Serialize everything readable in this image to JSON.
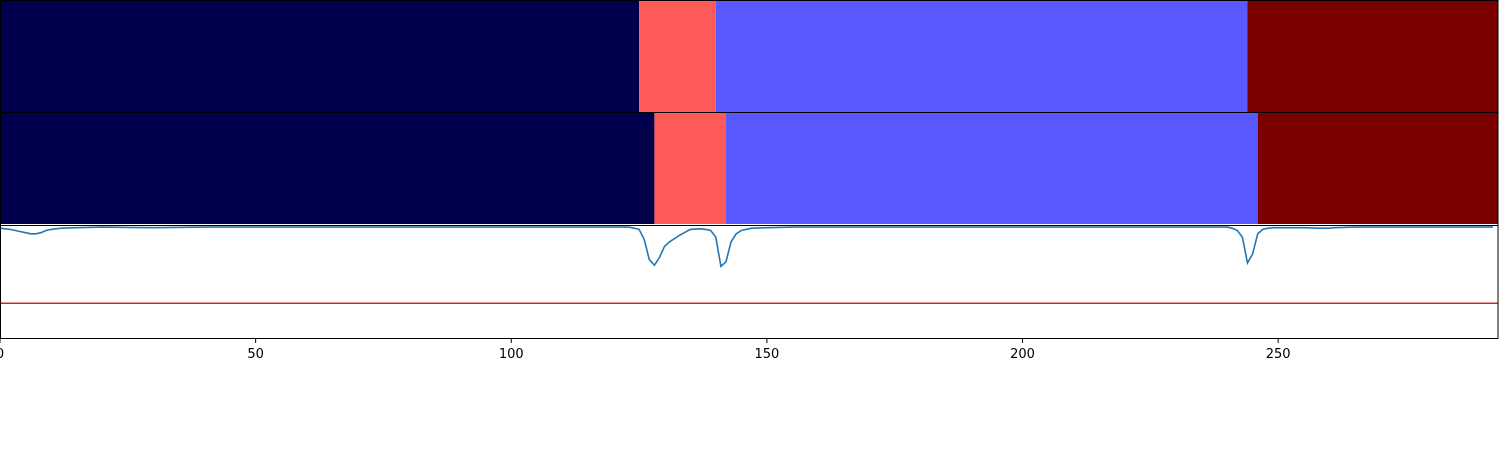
{
  "chart_data": {
    "type": "line",
    "title": "",
    "xlabel": "",
    "ylabel": "",
    "xlim": [
      0,
      293
    ],
    "xticks": [
      0,
      50,
      100,
      150,
      200,
      250
    ],
    "grid": false,
    "legend": "none",
    "segment_tracks": [
      {
        "segments": [
          {
            "start": 0,
            "end": 125,
            "color": "#00004c"
          },
          {
            "start": 125,
            "end": 140,
            "color": "#ff5a5a"
          },
          {
            "start": 140,
            "end": 244,
            "color": "#5959ff"
          },
          {
            "start": 244,
            "end": 293,
            "color": "#7a0000"
          }
        ]
      },
      {
        "segments": [
          {
            "start": 0,
            "end": 128,
            "color": "#00004c"
          },
          {
            "start": 128,
            "end": 142,
            "color": "#ff5a5a"
          },
          {
            "start": 142,
            "end": 246,
            "color": "#5959ff"
          },
          {
            "start": 246,
            "end": 293,
            "color": "#7a0000"
          }
        ]
      }
    ],
    "line_panel": {
      "ylim": [
        0,
        1
      ],
      "threshold": 0.31,
      "threshold_color": "#d62728",
      "series": [
        {
          "color": "#1f77b4",
          "x": [
            0,
            2,
            4,
            5,
            6,
            7,
            8,
            9,
            10,
            12,
            15,
            20,
            30,
            40,
            60,
            80,
            100,
            110,
            120,
            123,
            124,
            125,
            126,
            127,
            128,
            129,
            130,
            131,
            133,
            135,
            137,
            138,
            139,
            140,
            141,
            142,
            143,
            144,
            145,
            147,
            150,
            155,
            165,
            180,
            200,
            220,
            240,
            241,
            242,
            243,
            244,
            245,
            246,
            247,
            248,
            249,
            250,
            255,
            258,
            260,
            261,
            265,
            270,
            280,
            290,
            292
          ],
          "y": [
            0.98,
            0.97,
            0.95,
            0.94,
            0.93,
            0.93,
            0.94,
            0.96,
            0.97,
            0.98,
            0.985,
            0.99,
            0.985,
            0.99,
            0.99,
            0.99,
            0.99,
            0.99,
            0.99,
            0.99,
            0.98,
            0.97,
            0.88,
            0.7,
            0.65,
            0.72,
            0.82,
            0.86,
            0.92,
            0.97,
            0.975,
            0.97,
            0.96,
            0.9,
            0.64,
            0.68,
            0.86,
            0.93,
            0.96,
            0.98,
            0.985,
            0.99,
            0.99,
            0.99,
            0.99,
            0.99,
            0.99,
            0.98,
            0.96,
            0.9,
            0.67,
            0.75,
            0.93,
            0.97,
            0.98,
            0.985,
            0.985,
            0.985,
            0.98,
            0.98,
            0.985,
            0.99,
            0.99,
            0.99,
            0.99,
            0.99
          ]
        }
      ]
    }
  }
}
